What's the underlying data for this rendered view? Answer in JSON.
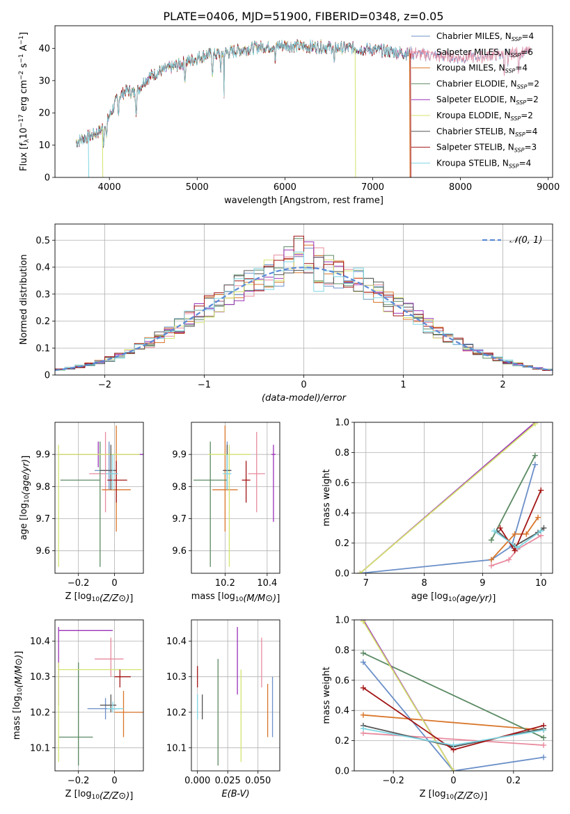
{
  "title": "PLATE=0406, MJD=51900, FIBERID=0348, z=0.05",
  "colors": [
    "#4f7fb5",
    "#e3ad2c",
    "#d2691e",
    "#55805b",
    "#9b30b8",
    "#d8e36b",
    "#555555",
    "#a31515",
    "#7fd6e3"
  ],
  "chart_data": [
    {
      "id": "spectrum",
      "type": "line",
      "title": "PLATE=0406, MJD=51900, FIBERID=0348, z=0.05",
      "xlabel": "wavelength [Angstrom, rest frame]",
      "ylabel_parts": [
        "Flux [f",
        "λ",
        "10",
        "−17",
        " erg cm",
        "−2",
        " s",
        "−1",
        " A",
        "−1",
        "]"
      ],
      "xlim": [
        3380,
        9050
      ],
      "ylim": [
        0,
        47
      ],
      "xticks": [
        4000,
        5000,
        6000,
        7000,
        8000,
        9000
      ],
      "yticks": [
        0,
        10,
        20,
        30,
        40
      ],
      "legend_position": "upper right",
      "series": [
        {
          "name": "Chabrier MILES",
          "nssp": "4",
          "color": "#6a8fc8"
        },
        {
          "name": "Salpeter MILES",
          "nssp": "6",
          "color": "#e88a9e"
        },
        {
          "name": "Kroupa MILES",
          "nssp": "4",
          "color": "#d9762a"
        },
        {
          "name": "Chabrier ELODIE",
          "nssp": "2",
          "color": "#5b8a63"
        },
        {
          "name": "Salpeter ELODIE",
          "nssp": "2",
          "color": "#9b30b8"
        },
        {
          "name": "Kroupa ELODIE",
          "nssp": "2",
          "color": "#d4e36e"
        },
        {
          "name": "Chabrier STELIB",
          "nssp": "4",
          "color": "#555555"
        },
        {
          "name": "Salpeter STELIB",
          "nssp": "3",
          "color": "#a31515"
        },
        {
          "name": "Kroupa STELIB",
          "nssp": "4",
          "color": "#7fd6e3"
        }
      ],
      "continuum": [
        [
          3620,
          11
        ],
        [
          3700,
          12
        ],
        [
          3800,
          13
        ],
        [
          3900,
          14.5
        ],
        [
          4000,
          19
        ],
        [
          4100,
          25
        ],
        [
          4200,
          27
        ],
        [
          4300,
          26
        ],
        [
          4400,
          30
        ],
        [
          4500,
          32
        ],
        [
          4600,
          33
        ],
        [
          4700,
          34
        ],
        [
          4800,
          35
        ],
        [
          4900,
          36
        ],
        [
          5000,
          37
        ],
        [
          5100,
          38
        ],
        [
          5200,
          38
        ],
        [
          5300,
          38.5
        ],
        [
          5400,
          39
        ],
        [
          5500,
          39.5
        ],
        [
          5600,
          40
        ],
        [
          5700,
          40.5
        ],
        [
          5800,
          40.5
        ],
        [
          5900,
          40.8
        ],
        [
          6000,
          41
        ],
        [
          6200,
          40.5
        ],
        [
          6400,
          40.5
        ],
        [
          6600,
          40.2
        ],
        [
          6800,
          40
        ],
        [
          7000,
          39.5
        ],
        [
          7200,
          39
        ],
        [
          7400,
          38.5
        ],
        [
          7600,
          38
        ],
        [
          7800,
          37.5
        ],
        [
          8000,
          37
        ],
        [
          8200,
          37.5
        ],
        [
          8400,
          38
        ],
        [
          8600,
          38.5
        ],
        [
          8800,
          39
        ]
      ],
      "dropouts": [
        {
          "x": 3760,
          "to": 0,
          "series": 8
        },
        {
          "x": 3920,
          "to": 0,
          "series": 5
        },
        {
          "x": 6800,
          "to": 0,
          "series": 5
        },
        {
          "x": 7420,
          "to": 0,
          "series": 2
        },
        {
          "x": 7430,
          "to": 0,
          "series": 7
        }
      ],
      "xmax_per_series": [
        8800,
        8800,
        7420,
        7420,
        7420,
        6800,
        7420,
        7430,
        7420
      ]
    },
    {
      "id": "residuals",
      "type": "histogram",
      "xlabel": "(data-model)/error",
      "ylabel": "Normed distribution",
      "xlim": [
        -2.5,
        2.5
      ],
      "ylim": [
        0,
        0.56
      ],
      "xticks": [
        -2,
        -1,
        0,
        1,
        2
      ],
      "yticks": [
        0,
        0.1,
        0.2,
        0.3,
        0.4,
        0.5
      ],
      "bin_width": 0.1,
      "reference_curve": {
        "name": "𝒩(0, 1)",
        "mean": 0,
        "sigma": 1,
        "color": "#5b8ad6"
      },
      "legend_position": "upper right"
    },
    {
      "id": "age-vs-Z",
      "type": "errorbar",
      "xlabel": "Z [log10(Z/Z⊙)]",
      "ylabel": "age  [log10(age/yr)]",
      "xlim": [
        -0.33,
        0.16
      ],
      "ylim": [
        9.53,
        10.0
      ],
      "xticks": [
        -0.2,
        0.0
      ],
      "yticks": [
        9.6,
        9.7,
        9.8,
        9.9
      ],
      "points": [
        {
          "x": -0.03,
          "y": 9.85,
          "xerr": [
            0.08,
            0.04
          ],
          "yerr": [
            0.06,
            0.09
          ],
          "series": 0
        },
        {
          "x": -0.05,
          "y": 9.84,
          "xerr": [
            0.09,
            0.05
          ],
          "yerr": [
            0.12,
            0.13
          ],
          "series": 1
        },
        {
          "x": 0.01,
          "y": 9.79,
          "xerr": [
            0.08,
            0.08
          ],
          "yerr": [
            0.13,
            0.2
          ],
          "series": 2
        },
        {
          "x": -0.08,
          "y": 9.82,
          "xerr": [
            0.22,
            0.0
          ],
          "yerr": [
            0.27,
            0.12
          ],
          "series": 3
        },
        {
          "x": -0.09,
          "y": 9.9,
          "xerr": [
            0.22,
            0.25
          ],
          "yerr": [
            0.04,
            0.04
          ],
          "series": 4
        },
        {
          "x": -0.31,
          "y": 9.9,
          "xerr": [
            0.0,
            0.45
          ],
          "yerr": [
            0.35,
            0.03
          ],
          "series": 5
        },
        {
          "x": -0.02,
          "y": 9.85,
          "xerr": [
            0.06,
            0.03
          ],
          "yerr": [
            0.06,
            0.08
          ],
          "series": 6
        },
        {
          "x": 0.01,
          "y": 9.82,
          "xerr": [
            0.05,
            0.06
          ],
          "yerr": [
            0.07,
            0.06
          ],
          "series": 7
        },
        {
          "x": -0.01,
          "y": 9.84,
          "xerr": [
            0.04,
            0.03
          ],
          "yerr": [
            0.05,
            0.06
          ],
          "series": 8
        }
      ]
    },
    {
      "id": "age-vs-mass",
      "type": "errorbar",
      "xlabel": "mass [log10(M/M⊙)]",
      "ylabel": "",
      "xlim": [
        10.04,
        10.46
      ],
      "ylim": [
        9.53,
        10.0
      ],
      "xticks": [
        10.2,
        10.4
      ],
      "yticks": [
        9.6,
        9.7,
        9.8,
        9.9
      ],
      "points": [
        {
          "x": 10.21,
          "y": 9.85,
          "xerr": [
            0.02,
            0.02
          ],
          "yerr": [
            0.06,
            0.09
          ],
          "series": 0
        },
        {
          "x": 10.35,
          "y": 9.84,
          "xerr": [
            0.04,
            0.04
          ],
          "yerr": [
            0.12,
            0.13
          ],
          "series": 1
        },
        {
          "x": 10.2,
          "y": 9.79,
          "xerr": [
            0.06,
            0.06
          ],
          "yerr": [
            0.13,
            0.2
          ],
          "series": 2
        },
        {
          "x": 10.13,
          "y": 9.82,
          "xerr": [
            0.08,
            0.08
          ],
          "yerr": [
            0.27,
            0.12
          ],
          "series": 3
        },
        {
          "x": 10.43,
          "y": 9.9,
          "xerr": [
            0.01,
            0.01
          ],
          "yerr": [
            0.21,
            0.03
          ],
          "series": 4
        },
        {
          "x": 10.22,
          "y": 9.9,
          "xerr": [
            0.1,
            0.1
          ],
          "yerr": [
            0.35,
            0.03
          ],
          "series": 5
        },
        {
          "x": 10.21,
          "y": 9.85,
          "xerr": [
            0.02,
            0.02
          ],
          "yerr": [
            0.06,
            0.08
          ],
          "series": 6
        },
        {
          "x": 10.3,
          "y": 9.82,
          "xerr": [
            0.02,
            0.02
          ],
          "yerr": [
            0.07,
            0.06
          ],
          "series": 7
        },
        {
          "x": 10.21,
          "y": 9.84,
          "xerr": [
            0.02,
            0.02
          ],
          "yerr": [
            0.05,
            0.06
          ],
          "series": 8
        }
      ]
    },
    {
      "id": "weight-vs-age",
      "type": "line",
      "xlabel": "age  [log10(age/yr)]",
      "ylabel": "mass weight",
      "xlim": [
        6.8,
        10.2
      ],
      "ylim": [
        0,
        1.0
      ],
      "xticks": [
        7,
        8,
        9,
        10
      ],
      "yticks": [
        0.0,
        0.2,
        0.4,
        0.6,
        0.8,
        1.0
      ],
      "series": [
        {
          "s": 0,
          "x": [
            6.9,
            9.15,
            9.5,
            9.9
          ],
          "y": [
            0.0,
            0.09,
            0.18,
            0.72
          ]
        },
        {
          "s": 1,
          "x": [
            9.15,
            9.45,
            9.6,
            10.0
          ],
          "y": [
            0.05,
            0.09,
            0.16,
            0.25
          ]
        },
        {
          "s": 2,
          "x": [
            9.15,
            9.55,
            9.75,
            9.95
          ],
          "y": [
            0.09,
            0.26,
            0.26,
            0.37
          ]
        },
        {
          "s": 3,
          "x": [
            9.15,
            9.9
          ],
          "y": [
            0.22,
            0.78
          ]
        },
        {
          "s": 4,
          "x": [
            6.9,
            9.9
          ],
          "y": [
            0.0,
            1.0
          ]
        },
        {
          "s": 5,
          "x": [
            6.9,
            9.9
          ],
          "y": [
            0.0,
            0.99
          ]
        },
        {
          "s": 6,
          "x": [
            9.25,
            9.55,
            9.95,
            10.05
          ],
          "y": [
            0.28,
            0.18,
            0.27,
            0.3
          ]
        },
        {
          "s": 7,
          "x": [
            9.3,
            9.55,
            10.0
          ],
          "y": [
            0.3,
            0.15,
            0.55
          ]
        },
        {
          "s": 8,
          "x": [
            9.2,
            9.6,
            10.0
          ],
          "y": [
            0.28,
            0.17,
            0.28
          ]
        }
      ]
    },
    {
      "id": "mass-vs-Z",
      "type": "errorbar",
      "xlabel": "Z [log10(Z/Z⊙)]",
      "ylabel": "mass [log10(M/M⊙)]",
      "xlim": [
        -0.33,
        0.16
      ],
      "ylim": [
        10.035,
        10.46
      ],
      "xticks": [
        -0.2,
        0.0
      ],
      "yticks": [
        10.1,
        10.2,
        10.3,
        10.4
      ],
      "points": [
        {
          "x": -0.05,
          "y": 10.21,
          "xerr": [
            0.1,
            0.08
          ],
          "yerr": [
            0.03,
            0.03
          ],
          "series": 0
        },
        {
          "x": -0.02,
          "y": 10.35,
          "xerr": [
            0.09,
            0.07
          ],
          "yerr": [
            0.05,
            0.06
          ],
          "series": 1
        },
        {
          "x": 0.05,
          "y": 10.2,
          "xerr": [
            0.05,
            0.11
          ],
          "yerr": [
            0.07,
            0.06
          ],
          "series": 2
        },
        {
          "x": -0.2,
          "y": 10.13,
          "xerr": [
            0.11,
            0.08
          ],
          "yerr": [
            0.08,
            0.21
          ],
          "series": 3
        },
        {
          "x": -0.31,
          "y": 10.43,
          "xerr": [
            0.0,
            0.3
          ],
          "yerr": [
            0.21,
            0.01
          ],
          "series": 4
        },
        {
          "x": -0.31,
          "y": 10.32,
          "xerr": [
            0.0,
            0.46
          ],
          "yerr": [
            0.26,
            0.02
          ],
          "series": 5
        },
        {
          "x": -0.02,
          "y": 10.22,
          "xerr": [
            0.06,
            0.03
          ],
          "yerr": [
            0.02,
            0.03
          ],
          "series": 6
        },
        {
          "x": 0.03,
          "y": 10.3,
          "xerr": [
            0.03,
            0.06
          ],
          "yerr": [
            0.03,
            0.02
          ],
          "series": 7
        },
        {
          "x": -0.01,
          "y": 10.21,
          "xerr": [
            0.03,
            0.06
          ],
          "yerr": [
            0.01,
            0.02
          ],
          "series": 8
        }
      ]
    },
    {
      "id": "mass-vs-ebv",
      "type": "errorbar",
      "xlabel": "E(B-V)",
      "ylabel": "",
      "xlim": [
        -0.005,
        0.068
      ],
      "ylim": [
        10.035,
        10.46
      ],
      "xticks": [
        0.0,
        0.025,
        0.05
      ],
      "xticklabels": [
        "0.000",
        "0.025",
        "0.050"
      ],
      "yticks": [
        10.1,
        10.2,
        10.3,
        10.4
      ],
      "points": [
        {
          "x": 0.062,
          "y": 10.21,
          "xerr": [
            0,
            0
          ],
          "yerr": [
            0.08,
            0.09
          ],
          "series": 0
        },
        {
          "x": 0.053,
          "y": 10.35,
          "xerr": [
            0,
            0
          ],
          "yerr": [
            0.08,
            0.06
          ],
          "series": 1
        },
        {
          "x": 0.058,
          "y": 10.2,
          "xerr": [
            0,
            0
          ],
          "yerr": [
            0.07,
            0.08
          ],
          "series": 2
        },
        {
          "x": 0.017,
          "y": 10.13,
          "xerr": [
            0,
            0
          ],
          "yerr": [
            0.08,
            0.22
          ],
          "series": 3
        },
        {
          "x": 0.033,
          "y": 10.35,
          "xerr": [
            0,
            0
          ],
          "yerr": [
            0.1,
            0.09
          ],
          "series": 4
        },
        {
          "x": 0.036,
          "y": 10.21,
          "xerr": [
            0,
            0
          ],
          "yerr": [
            0.15,
            0.11
          ],
          "series": 5
        },
        {
          "x": 0.004,
          "y": 10.22,
          "xerr": [
            0,
            0
          ],
          "yerr": [
            0.04,
            0.03
          ],
          "series": 6
        },
        {
          "x": 0.0,
          "y": 10.3,
          "xerr": [
            0,
            0
          ],
          "yerr": [
            0.03,
            0.03
          ],
          "series": 7
        },
        {
          "x": 0.0,
          "y": 10.22,
          "xerr": [
            0,
            0
          ],
          "yerr": [
            0.04,
            0.03
          ],
          "series": 8
        }
      ]
    },
    {
      "id": "weight-vs-Z",
      "type": "line",
      "xlabel": "Z [log10(Z/Z⊙)]",
      "ylabel": "mass weight",
      "xlim": [
        -0.33,
        0.33
      ],
      "ylim": [
        0,
        1.0
      ],
      "xticks": [
        -0.2,
        0.0,
        0.2
      ],
      "yticks": [
        0.0,
        0.2,
        0.4,
        0.6,
        0.8,
        1.0
      ],
      "series": [
        {
          "s": 0,
          "x": [
            -0.3,
            0.0,
            0.3
          ],
          "y": [
            0.72,
            0.0,
            0.09
          ]
        },
        {
          "s": 1,
          "x": [
            -0.3,
            0.3
          ],
          "y": [
            0.25,
            0.17
          ]
        },
        {
          "s": 2,
          "x": [
            -0.3,
            0.3
          ],
          "y": [
            0.37,
            0.27
          ]
        },
        {
          "s": 3,
          "x": [
            -0.3,
            0.3
          ],
          "y": [
            0.78,
            0.22
          ]
        },
        {
          "s": 4,
          "x": [
            -0.3,
            0.0
          ],
          "y": [
            1.0,
            0.0
          ]
        },
        {
          "s": 5,
          "x": [
            -0.3,
            0.0
          ],
          "y": [
            0.99,
            0.0
          ]
        },
        {
          "s": 6,
          "x": [
            -0.3,
            0.0,
            0.3
          ],
          "y": [
            0.3,
            0.16,
            0.28
          ]
        },
        {
          "s": 7,
          "x": [
            -0.3,
            0.0,
            0.3
          ],
          "y": [
            0.55,
            0.14,
            0.3
          ]
        },
        {
          "s": 8,
          "x": [
            -0.3,
            0.0,
            0.3
          ],
          "y": [
            0.28,
            0.17,
            0.27
          ]
        }
      ]
    }
  ]
}
